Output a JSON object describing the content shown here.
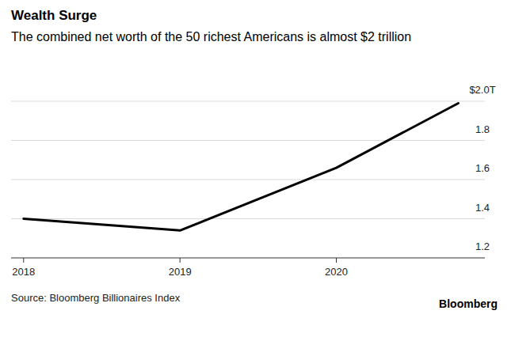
{
  "chart_data": {
    "type": "line",
    "title": "Wealth Surge",
    "subtitle": "The combined net worth of the 50 richest Americans is almost $2 trillion",
    "source": "Source: Bloomberg Billionaires Index",
    "credit": "Bloomberg",
    "x": [
      2018,
      2019,
      2020,
      2020.78
    ],
    "values": [
      1.4,
      1.34,
      1.66,
      1.99
    ],
    "color": "#000000",
    "xlim": [
      2017.92,
      2020.95
    ],
    "xticks": [
      2018,
      2019,
      2020
    ],
    "ylim": [
      1.2,
      2.0
    ],
    "yticks": [
      1.2,
      1.4,
      1.6,
      1.8,
      {
        "value": 2.0,
        "label": "$2.0T"
      }
    ],
    "grid": true
  }
}
